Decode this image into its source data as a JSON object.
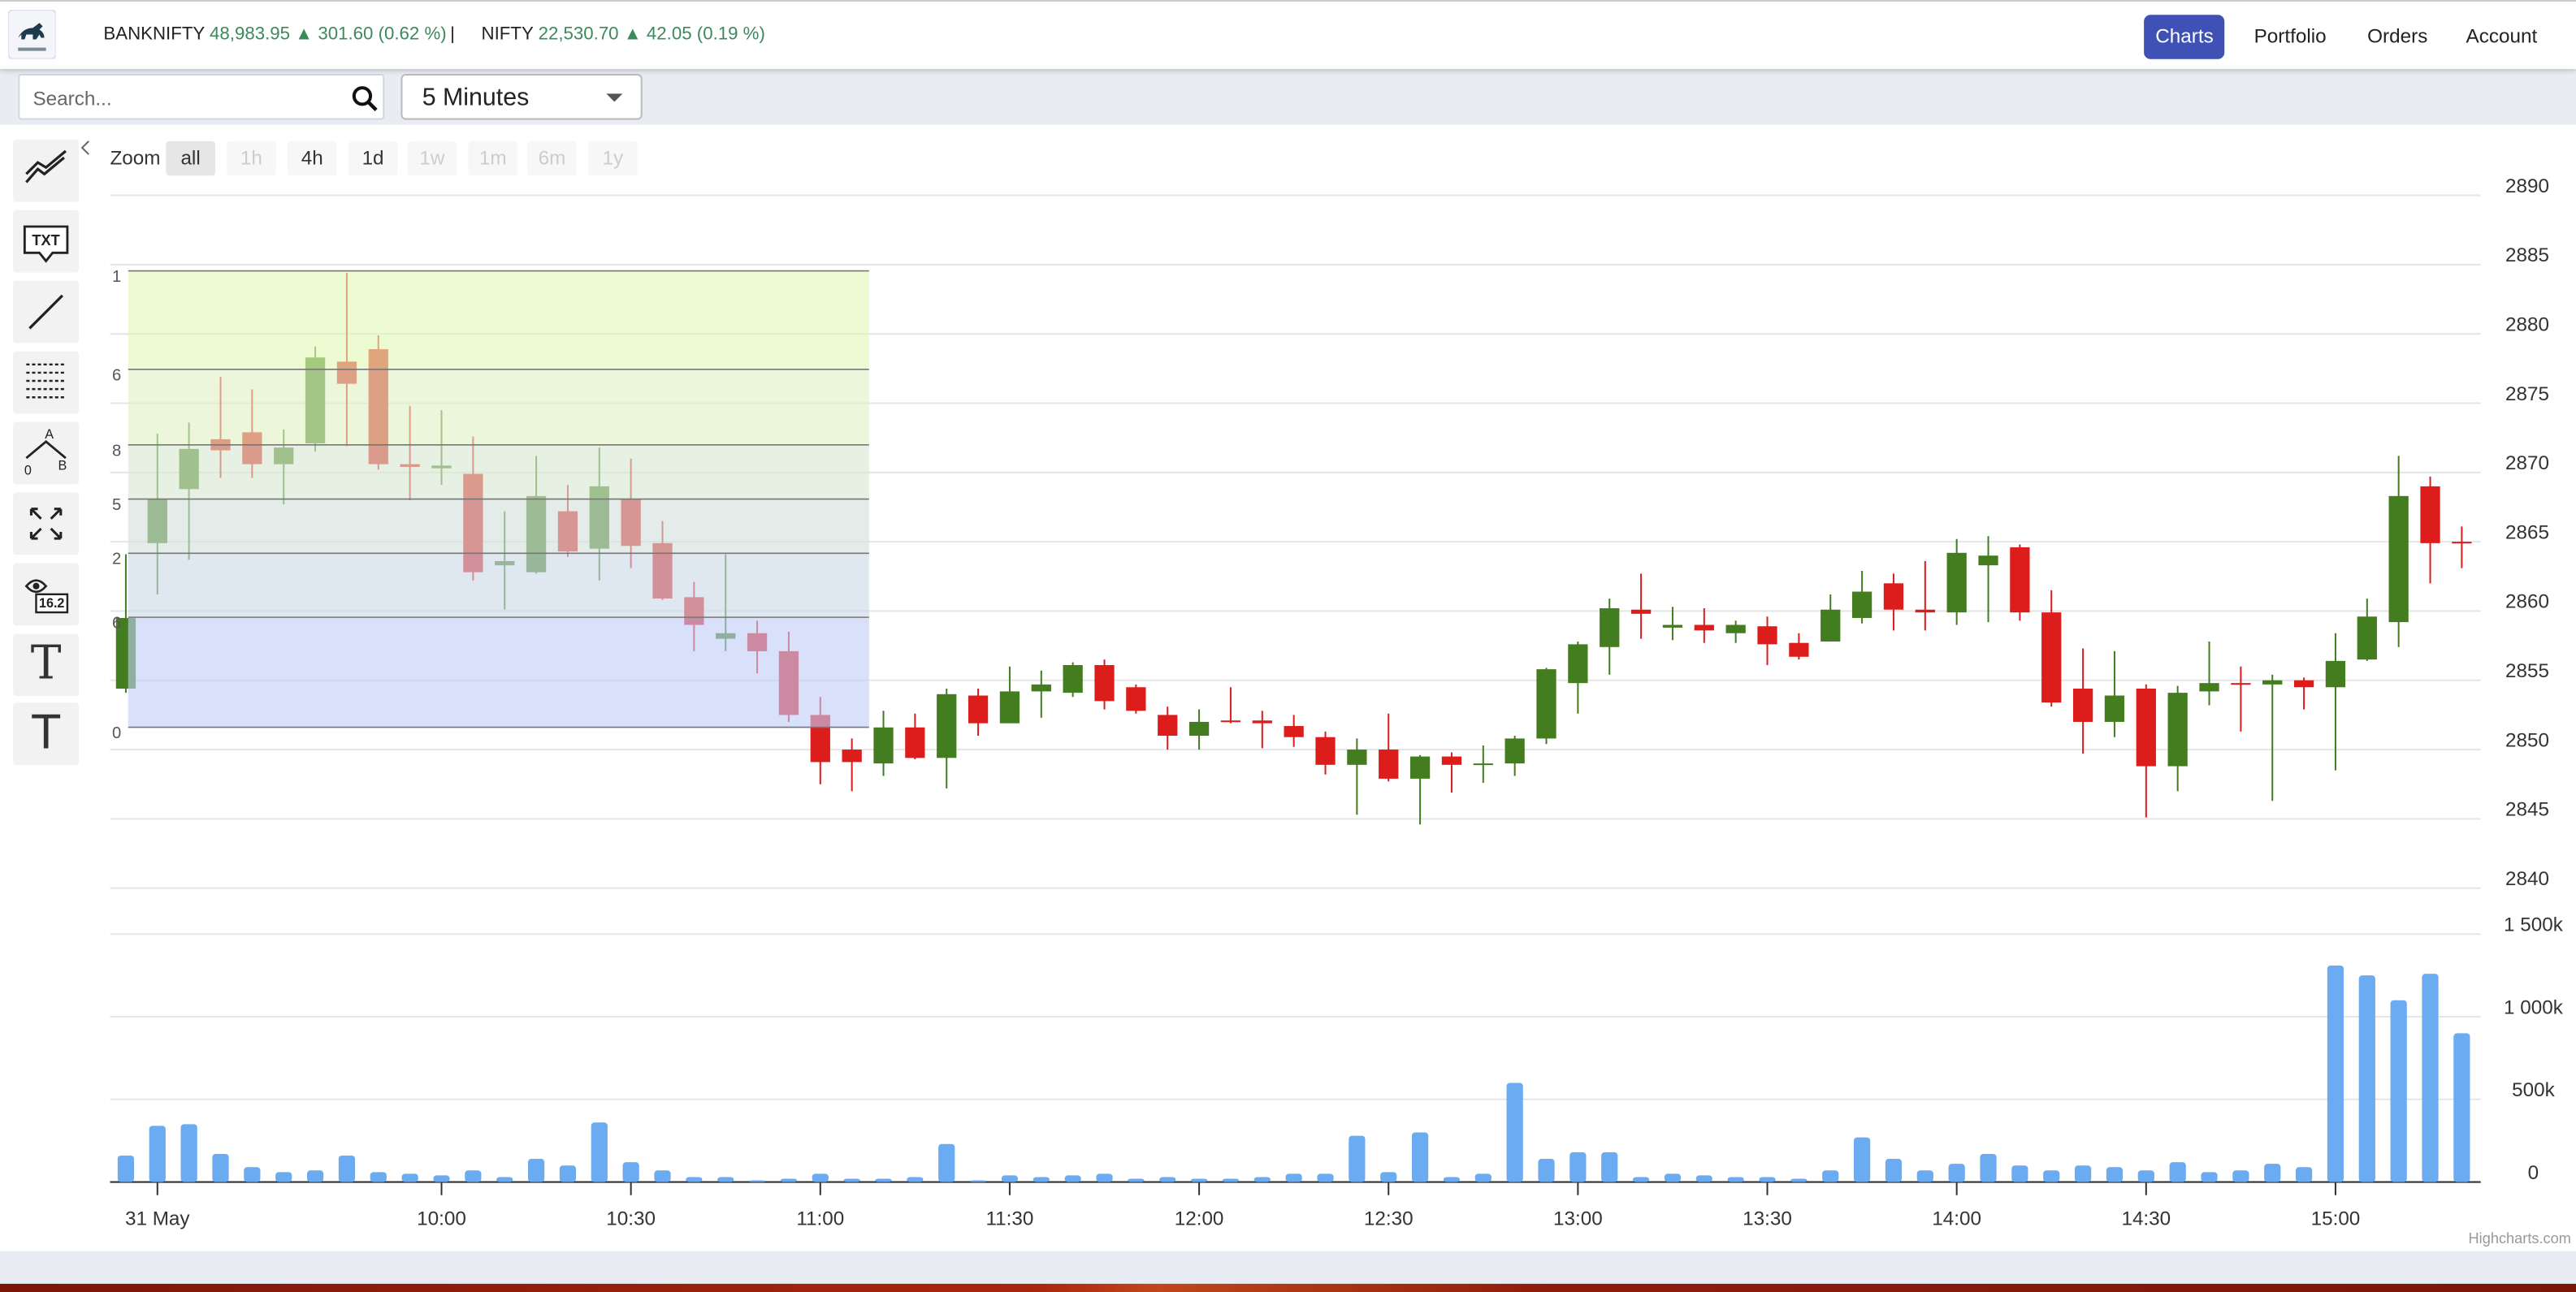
{
  "header": {
    "tickers": [
      {
        "name": "BANKNIFTY",
        "quote": "48,983.95 ▲ 301.60 (0.62 %)"
      },
      {
        "name": "NIFTY",
        "quote": "22,530.70 ▲ 42.05 (0.19 %)"
      }
    ],
    "separator": "|",
    "nav": [
      "Charts",
      "Portfolio",
      "Orders",
      "Account"
    ]
  },
  "controls": {
    "search_placeholder": "Search...",
    "interval": "5 Minutes"
  },
  "toolbar": {
    "text_tool": "TXT",
    "fib_tool": [
      "A",
      "0",
      "B"
    ],
    "measure_tool": "16.2",
    "type_tools": [
      "T",
      "T"
    ]
  },
  "chart_data": {
    "type": "candlestick",
    "range_selector": {
      "label": "Zoom",
      "buttons": [
        {
          "text": "all",
          "enabled": true
        },
        {
          "text": "1h",
          "enabled": false
        },
        {
          "text": "4h",
          "enabled": true
        },
        {
          "text": "1d",
          "enabled": true
        },
        {
          "text": "1w",
          "enabled": false
        },
        {
          "text": "1m",
          "enabled": false
        },
        {
          "text": "6m",
          "enabled": false
        },
        {
          "text": "1y",
          "enabled": false
        }
      ]
    },
    "up_color": "#437d1f",
    "down_color": "#dd1c1c",
    "open": [
      2854.4,
      2864.9,
      2868.8,
      2872.4,
      2872.9,
      2870.6,
      2872.1,
      2878.0,
      2878.9,
      2870.6,
      2870.3,
      2869.9,
      2863.3,
      2862.8,
      2867.2,
      2864.5,
      2868.1,
      2864.9,
      2861.0,
      2858.0,
      2858.4,
      2857.1,
      2852.5,
      2850.0,
      2849.0,
      2851.6,
      2849.4,
      2853.9,
      2851.9,
      2854.2,
      2854.1,
      2856.1,
      2854.5,
      2852.5,
      2851.0,
      2852.1,
      2852.1,
      2851.7,
      2850.9,
      2848.9,
      2850.0,
      2847.9,
      2849.5,
      2848.9,
      2849.0,
      2850.8,
      2854.8,
      2857.4,
      2860.1,
      2858.8,
      2859.0,
      2858.4,
      2858.9,
      2857.7,
      2857.8,
      2859.5,
      2862.0,
      2860.1,
      2859.9,
      2863.3,
      2864.6,
      2859.9,
      2854.4,
      2852.0,
      2854.4,
      2848.8,
      2854.2,
      2854.8,
      2854.7,
      2855.0,
      2854.5,
      2856.5,
      2859.2,
      2869.0,
      2865.0
    ],
    "high": [
      2864.1,
      2872.8,
      2873.6,
      2876.9,
      2876.0,
      2873.1,
      2879.1,
      2884.4,
      2879.9,
      2874.8,
      2874.5,
      2872.6,
      2867.2,
      2871.2,
      2869.1,
      2871.8,
      2871.0,
      2866.5,
      2862.1,
      2864.1,
      2859.3,
      2858.5,
      2853.8,
      2850.8,
      2852.8,
      2852.6,
      2854.4,
      2854.4,
      2856.0,
      2855.7,
      2856.3,
      2856.5,
      2854.7,
      2853.1,
      2852.9,
      2854.5,
      2852.8,
      2852.5,
      2851.3,
      2850.8,
      2852.6,
      2849.6,
      2849.8,
      2850.3,
      2851.0,
      2855.9,
      2857.8,
      2860.9,
      2862.7,
      2860.3,
      2860.2,
      2859.3,
      2859.6,
      2858.4,
      2861.2,
      2862.9,
      2862.7,
      2863.6,
      2865.2,
      2865.4,
      2864.8,
      2861.5,
      2857.3,
      2857.1,
      2854.7,
      2854.6,
      2857.8,
      2856.0,
      2855.4,
      2855.2,
      2858.4,
      2860.9,
      2871.2,
      2869.7,
      2866.1
    ],
    "low": [
      2854.1,
      2861.2,
      2863.7,
      2869.6,
      2869.6,
      2867.7,
      2871.5,
      2871.9,
      2870.2,
      2868.0,
      2869.1,
      2862.2,
      2860.1,
      2862.7,
      2863.9,
      2862.2,
      2863.1,
      2860.8,
      2857.1,
      2857.1,
      2855.5,
      2852.0,
      2847.5,
      2847.0,
      2848.1,
      2849.3,
      2847.2,
      2851.0,
      2851.9,
      2852.3,
      2853.8,
      2852.9,
      2852.6,
      2850.0,
      2850.0,
      2851.9,
      2850.1,
      2850.2,
      2848.2,
      2845.3,
      2847.7,
      2844.6,
      2846.9,
      2847.6,
      2848.1,
      2850.4,
      2852.6,
      2855.4,
      2858.0,
      2857.9,
      2857.7,
      2857.7,
      2856.1,
      2856.5,
      2857.8,
      2859.1,
      2858.6,
      2858.6,
      2859.0,
      2859.2,
      2859.3,
      2853.1,
      2849.7,
      2850.9,
      2845.1,
      2847.0,
      2853.2,
      2851.3,
      2846.3,
      2852.9,
      2848.5,
      2856.4,
      2857.4,
      2862.0,
      2863.1
    ],
    "close": [
      2859.5,
      2868.1,
      2871.7,
      2871.6,
      2870.6,
      2871.8,
      2878.3,
      2876.4,
      2870.6,
      2870.4,
      2870.5,
      2862.8,
      2863.6,
      2868.3,
      2864.3,
      2869.0,
      2864.7,
      2860.9,
      2859.0,
      2858.4,
      2857.1,
      2852.5,
      2849.1,
      2849.1,
      2851.6,
      2849.4,
      2854.0,
      2851.9,
      2854.2,
      2854.7,
      2856.1,
      2853.5,
      2852.8,
      2851.0,
      2852.0,
      2852.0,
      2851.9,
      2850.9,
      2848.9,
      2850.0,
      2847.9,
      2849.5,
      2848.9,
      2849.0,
      2850.8,
      2855.8,
      2857.6,
      2860.2,
      2859.8,
      2859.0,
      2858.6,
      2859.0,
      2857.6,
      2856.7,
      2860.1,
      2861.4,
      2860.1,
      2859.9,
      2864.2,
      2864.0,
      2859.9,
      2853.4,
      2852.0,
      2853.9,
      2848.8,
      2854.1,
      2854.8,
      2854.7,
      2855.0,
      2854.5,
      2856.4,
      2859.6,
      2868.3,
      2864.9,
      2864.9
    ],
    "ylim": [
      2840,
      2890
    ],
    "yticks": [
      2840,
      2845,
      2850,
      2855,
      2860,
      2865,
      2870,
      2875,
      2880,
      2885,
      2890
    ],
    "xlim": [
      -0.5,
      74.6
    ],
    "xticks": [
      {
        "value": 1,
        "label": "31 May"
      },
      {
        "value": 10,
        "label": "10:00"
      },
      {
        "value": 16,
        "label": "10:30"
      },
      {
        "value": 22,
        "label": "11:00"
      },
      {
        "value": 28,
        "label": "11:30"
      },
      {
        "value": 34,
        "label": "12:00"
      },
      {
        "value": 40,
        "label": "12:30"
      },
      {
        "value": 46,
        "label": "13:00"
      },
      {
        "value": 52,
        "label": "13:30"
      },
      {
        "value": 58,
        "label": "14:00"
      },
      {
        "value": 64,
        "label": "14:30"
      },
      {
        "value": 70,
        "label": "15:00"
      }
    ],
    "grid": true,
    "volume": {
      "color": "#6aabf2",
      "values": [
        160000,
        340000,
        350000,
        170000,
        90000,
        60000,
        70000,
        160000,
        60000,
        50000,
        40000,
        70000,
        30000,
        140000,
        100000,
        360000,
        120000,
        70000,
        30000,
        30000,
        10000,
        20000,
        50000,
        20000,
        20000,
        30000,
        230000,
        10000,
        40000,
        30000,
        40000,
        50000,
        20000,
        30000,
        20000,
        20000,
        30000,
        50000,
        50000,
        280000,
        60000,
        300000,
        30000,
        50000,
        600000,
        140000,
        180000,
        180000,
        30000,
        50000,
        40000,
        30000,
        30000,
        20000,
        70000,
        270000,
        140000,
        70000,
        110000,
        170000,
        100000,
        70000,
        100000,
        90000,
        70000,
        120000,
        60000,
        70000,
        110000,
        90000,
        1310000,
        1250000,
        1100000,
        1260000,
        900000
      ],
      "ylim": [
        0,
        1500000
      ],
      "yticks": [
        0,
        {
          "value": 500000,
          "label": "500k"
        },
        {
          "value": 1000000,
          "label": "1 000k"
        },
        {
          "value": 1500000,
          "label": "1 500k"
        }
      ]
    },
    "drawing": {
      "levels": [
        "1",
        "6",
        "8",
        "5",
        "2",
        "6",
        "0"
      ]
    },
    "credits": "Highcharts.com"
  }
}
